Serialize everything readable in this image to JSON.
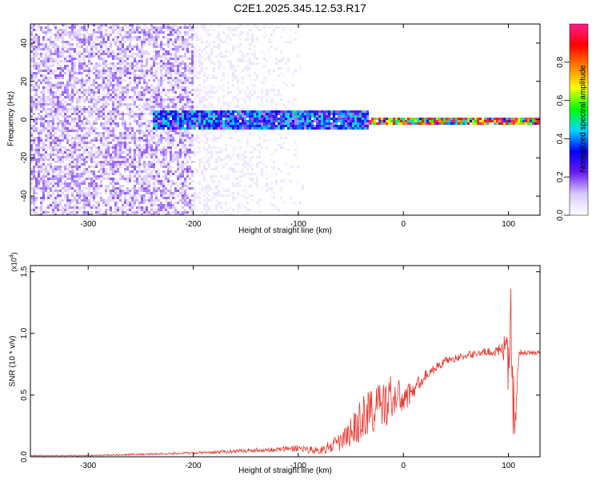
{
  "figure_title": "C2E1.2025.345.12.53.R17",
  "colors": {
    "signal": "#e8372f",
    "spectrum_purple": "#6a1cf0",
    "axes": "#000000"
  },
  "chart_data": [
    {
      "type": "heatmap",
      "title": "",
      "xlabel": "Height of straight line (km)",
      "ylabel": "Frequency (Hz)",
      "xlim": [
        -355,
        130
      ],
      "ylim": [
        -50,
        50
      ],
      "xticks": [
        -300,
        -200,
        -100,
        0,
        100
      ],
      "yticks": [
        -40,
        -20,
        0,
        20,
        40
      ],
      "colorbar": {
        "label": "Normalized spectral amplitude",
        "range": [
          0,
          1
        ],
        "ticks": [
          "0.0",
          "0.2",
          "0.4",
          "0.6",
          "0.8"
        ],
        "colormap": [
          "#ffffff",
          "#d9c9ff",
          "#6a1cf0",
          "#0000ff",
          "#00d8ff",
          "#00ff00",
          "#ffff00",
          "#ff8000",
          "#ff0000",
          "#ff1e8c"
        ]
      },
      "features": [
        {
          "x_range": [
            -355,
            -200
          ],
          "freq_range": [
            -50,
            50
          ],
          "amplitude": 0.15,
          "pattern": "broadband noise"
        },
        {
          "x_range": [
            -200,
            -95
          ],
          "freq_range": [
            -50,
            50
          ],
          "amplitude": 0.05,
          "pattern": "fading noise"
        },
        {
          "x_range": [
            -240,
            -35
          ],
          "freq_range": [
            -5,
            5
          ],
          "amplitude": 0.4,
          "pattern": "band near 0 Hz"
        },
        {
          "x_range": [
            -35,
            130
          ],
          "freq_range": [
            -2,
            2
          ],
          "amplitude": 0.9,
          "pattern": "strong tone at 0 Hz"
        }
      ]
    },
    {
      "type": "line",
      "title": "",
      "xlabel": "Height of straight line (km)",
      "ylabel": "SNR (10 * v/v)",
      "y_multiplier": "(x10",
      "y_multiplier_exp": "4",
      "y_multiplier_close": ")",
      "xlim": [
        -355,
        130
      ],
      "ylim": [
        0,
        1.55
      ],
      "xticks": [
        -300,
        -200,
        -100,
        0,
        100
      ],
      "yticks": [
        "0.0",
        "0.5",
        "1.0",
        "1.5"
      ],
      "series": [
        {
          "x": [
            -355,
            -300,
            -250,
            -200,
            -150,
            -120,
            -100,
            -80,
            -70,
            -60,
            -55,
            -50,
            -45,
            -40,
            -35,
            -30,
            -25,
            -20,
            -15,
            -10,
            -5,
            0,
            5,
            10,
            15,
            20,
            30,
            40,
            50,
            60,
            70,
            80,
            90,
            95,
            98,
            100,
            102,
            104,
            106,
            110,
            115,
            120,
            130
          ],
          "y": [
            0.01,
            0.01,
            0.02,
            0.03,
            0.05,
            0.06,
            0.07,
            0.05,
            0.08,
            0.12,
            0.15,
            0.2,
            0.25,
            0.3,
            0.35,
            0.38,
            0.4,
            0.42,
            0.45,
            0.5,
            0.48,
            0.47,
            0.5,
            0.55,
            0.6,
            0.65,
            0.72,
            0.78,
            0.8,
            0.82,
            0.84,
            0.85,
            0.86,
            0.85,
            0.9,
            0.6,
            1.4,
            0.5,
            0.3,
            0.84,
            0.85,
            0.84,
            0.85
          ],
          "noise": [
            0.005,
            0.005,
            0.008,
            0.01,
            0.015,
            0.02,
            0.03,
            0.03,
            0.05,
            0.08,
            0.1,
            0.12,
            0.15,
            0.18,
            0.2,
            0.22,
            0.2,
            0.2,
            0.2,
            0.2,
            0.15,
            0.12,
            0.1,
            0.08,
            0.06,
            0.05,
            0.04,
            0.03,
            0.03,
            0.03,
            0.03,
            0.03,
            0.04,
            0.1,
            0.15,
            0.3,
            0.4,
            0.3,
            0.2,
            0.03,
            0.02,
            0.02,
            0.02
          ]
        }
      ]
    }
  ]
}
